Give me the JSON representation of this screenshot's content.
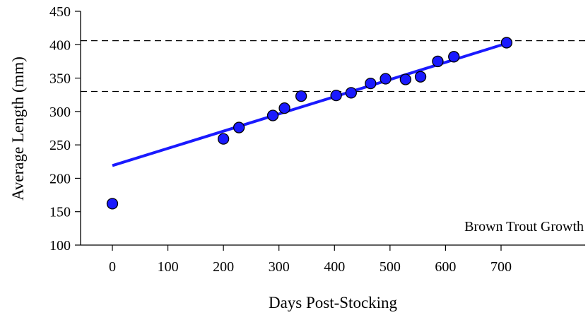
{
  "chart_data": {
    "type": "scatter",
    "xlabel": "Days Post-Stocking",
    "ylabel": "Average Length (mm)",
    "annotation": "Brown Trout Growth",
    "xlim": [
      -50,
      750
    ],
    "ylim": [
      100,
      450
    ],
    "x_ticks": [
      0,
      100,
      200,
      300,
      400,
      500,
      600,
      700
    ],
    "y_ticks": [
      100,
      150,
      200,
      250,
      300,
      350,
      400,
      450
    ],
    "x_tick_labels": [
      "0",
      "100",
      "200",
      "300",
      "400",
      "500",
      "600",
      "700"
    ],
    "y_tick_labels": [
      "100",
      "150",
      "200",
      "250",
      "300",
      "350",
      "400",
      "450"
    ],
    "grid": false,
    "series": [
      {
        "type": "scatter",
        "x": [
          0,
          200,
          228,
          289,
          310,
          340,
          403,
          430,
          465,
          492,
          528,
          555,
          586,
          615,
          710
        ],
        "y": [
          162,
          259,
          276,
          294,
          305,
          323,
          324,
          328,
          342,
          349,
          348,
          352,
          375,
          382,
          403
        ],
        "color": "#1a1aff"
      },
      {
        "type": "line",
        "x": [
          0,
          710
        ],
        "y": [
          219,
          402
        ],
        "color": "#1a1aff"
      }
    ],
    "reference_lines": [
      {
        "orientation": "horizontal",
        "y": 406,
        "style": "dashed",
        "color": "#000000"
      },
      {
        "orientation": "horizontal",
        "y": 330,
        "style": "dashed",
        "color": "#000000"
      }
    ]
  }
}
